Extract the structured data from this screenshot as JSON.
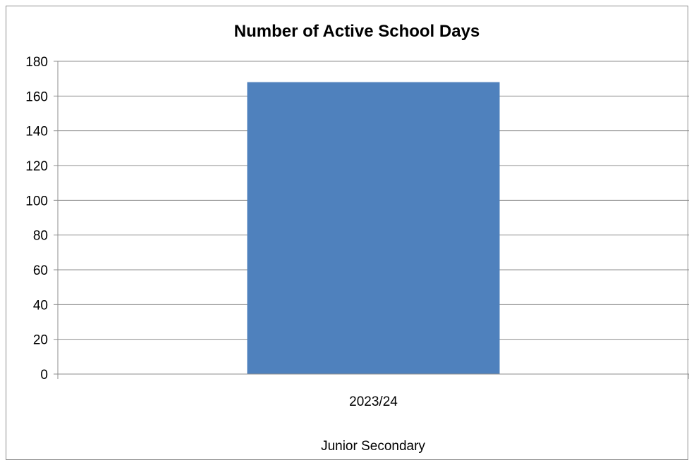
{
  "chart_data": {
    "type": "bar",
    "title": "Number of Active School Days",
    "categories": [
      "2023/24"
    ],
    "series": [
      {
        "values": [
          168
        ]
      }
    ],
    "xlabel": "Junior Secondary",
    "ylabel": "",
    "ylim": [
      0,
      180
    ],
    "yticks": [
      0,
      20,
      40,
      60,
      80,
      100,
      120,
      140,
      160,
      180
    ],
    "grid": true,
    "legend": "none",
    "bar_color": "#4f81bd",
    "grid_color": "#8c8c8c"
  }
}
